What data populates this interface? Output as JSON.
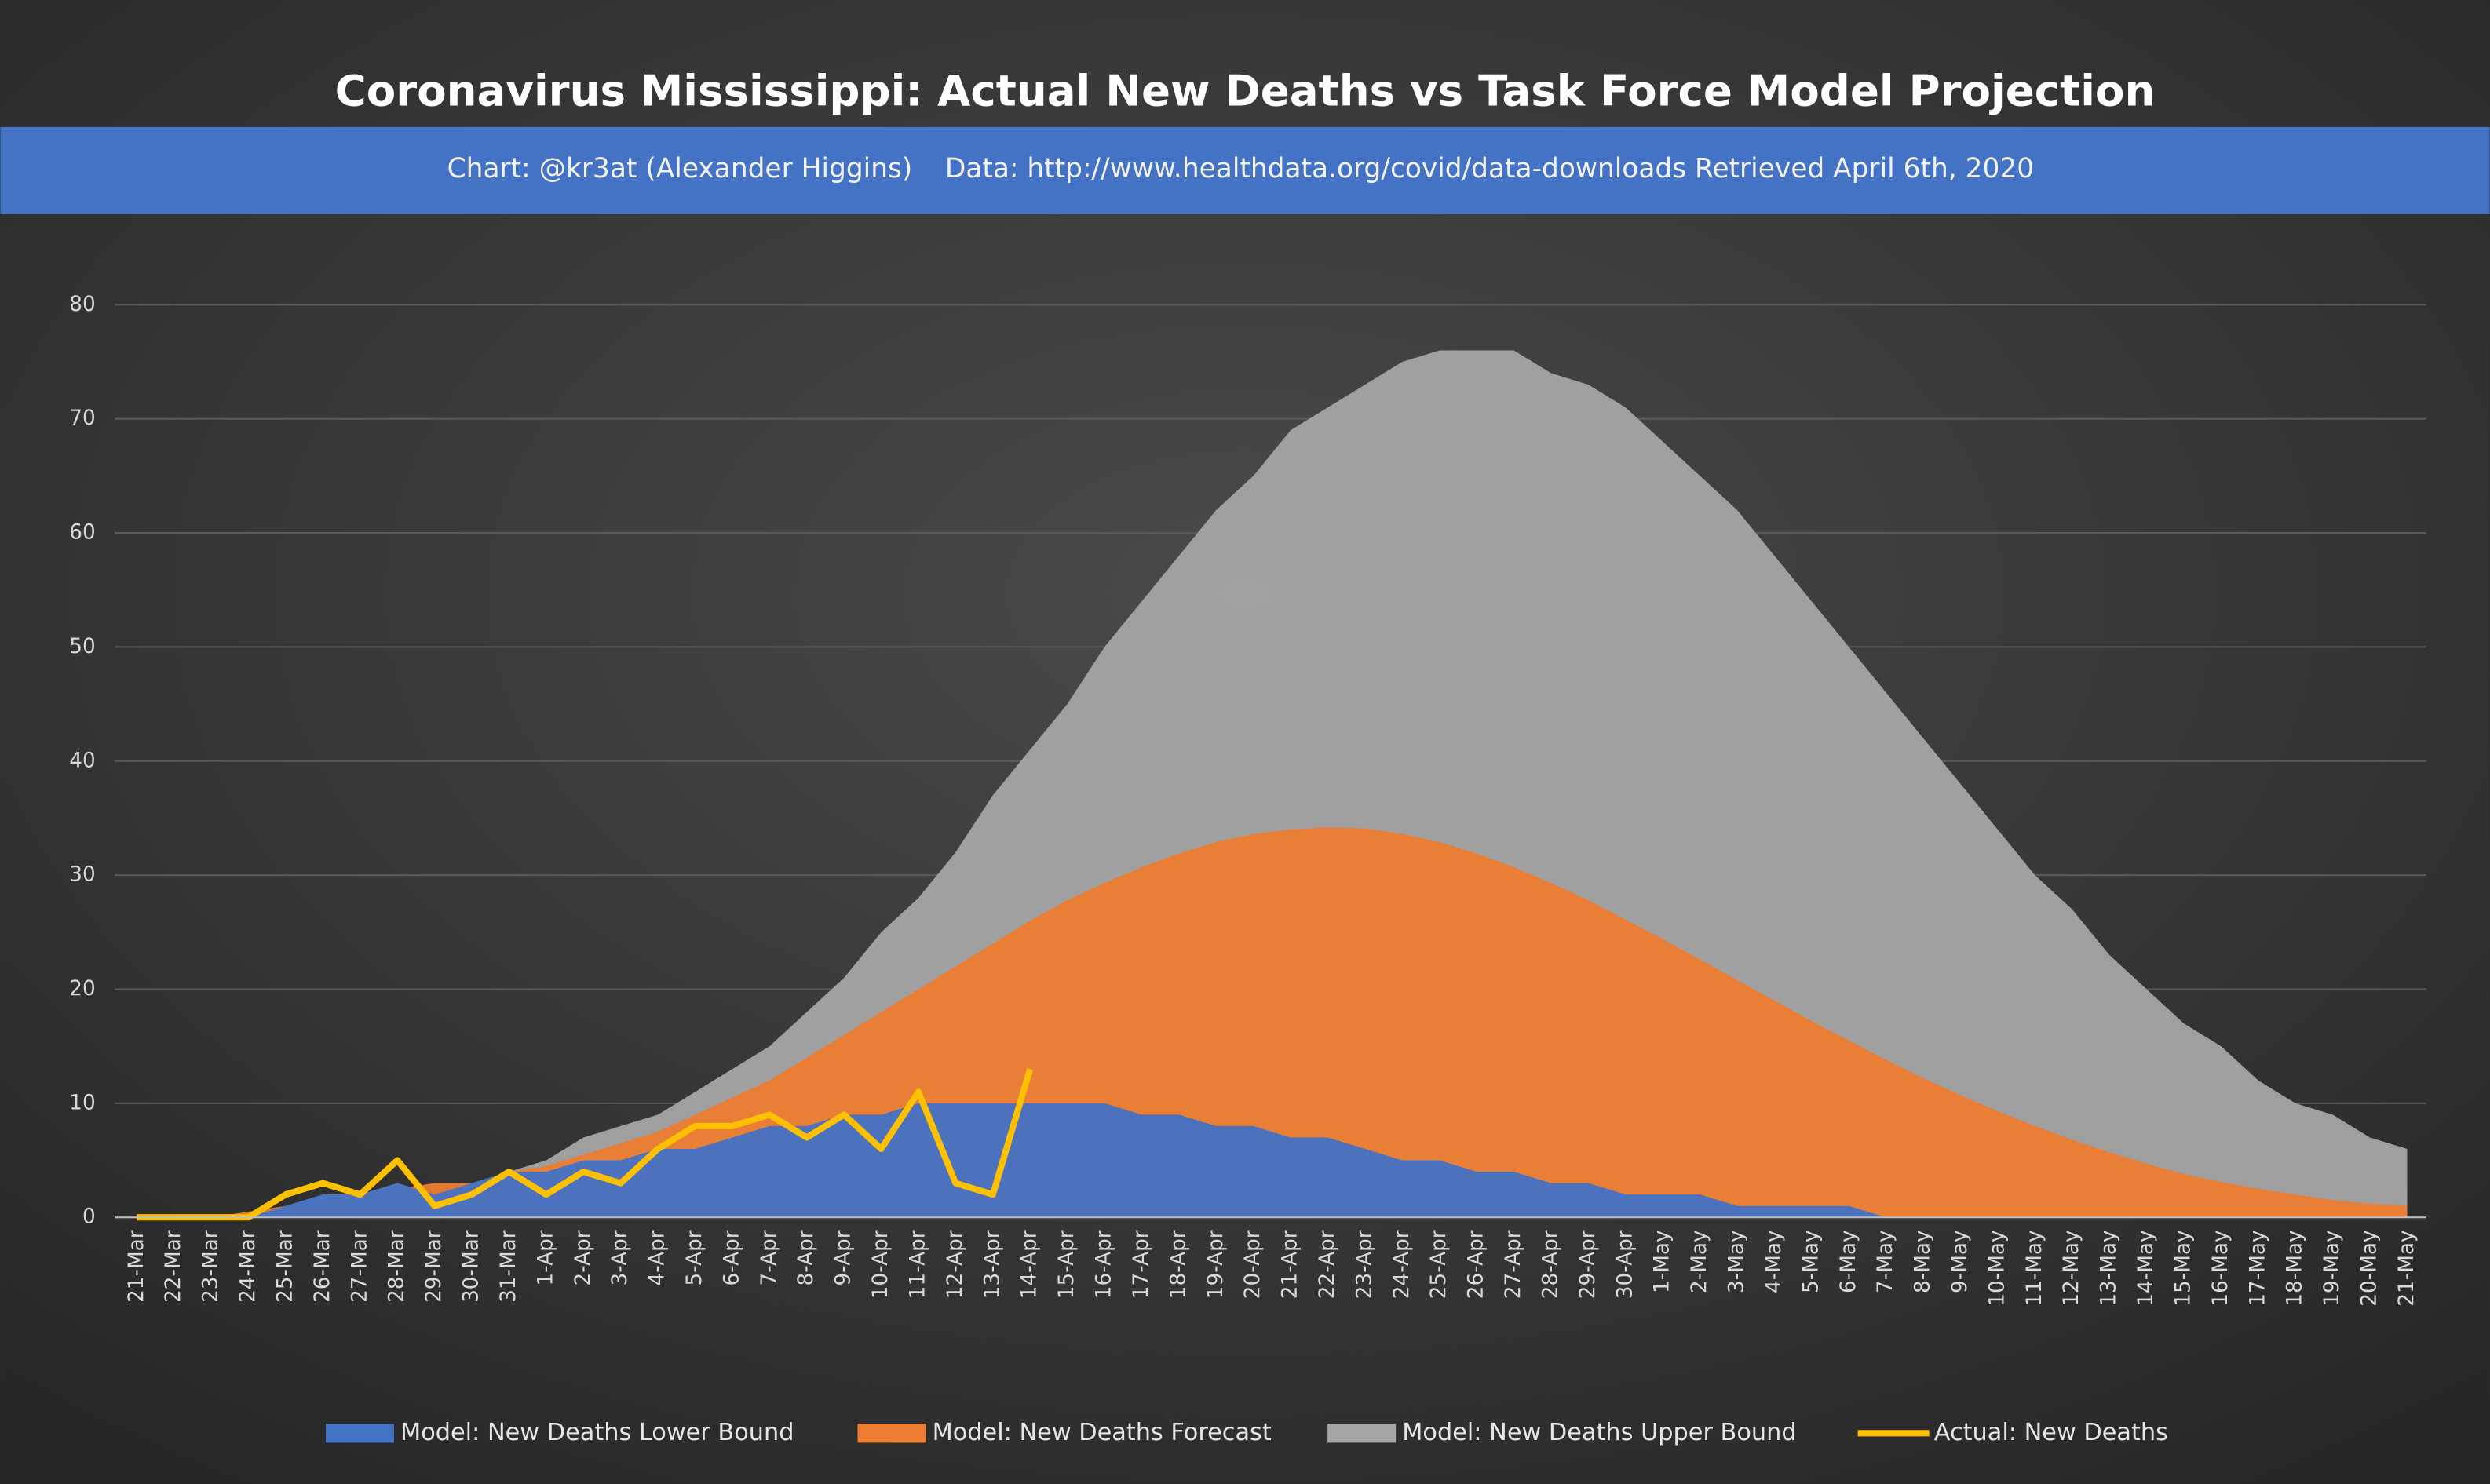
{
  "chart_data": {
    "type": "area",
    "title": "Coronavirus Mississippi: Actual New Deaths vs Task Force Model Projection",
    "subtitle": [
      "Chart: @kr3at (Alexander Higgins)",
      "Data: http://www.healthdata.org/covid/data-downloads Retrieved April 6th, 2020"
    ],
    "categories": [
      "21-Mar",
      "22-Mar",
      "23-Mar",
      "24-Mar",
      "25-Mar",
      "26-Mar",
      "27-Mar",
      "28-Mar",
      "29-Mar",
      "30-Mar",
      "31-Mar",
      "1-Apr",
      "2-Apr",
      "3-Apr",
      "4-Apr",
      "5-Apr",
      "6-Apr",
      "7-Apr",
      "8-Apr",
      "9-Apr",
      "10-Apr",
      "11-Apr",
      "12-Apr",
      "13-Apr",
      "14-Apr",
      "15-Apr",
      "16-Apr",
      "17-Apr",
      "18-Apr",
      "19-Apr",
      "20-Apr",
      "21-Apr",
      "22-Apr",
      "23-Apr",
      "24-Apr",
      "25-Apr",
      "26-Apr",
      "27-Apr",
      "28-Apr",
      "29-Apr",
      "30-Apr",
      "1-May",
      "2-May",
      "3-May",
      "4-May",
      "5-May",
      "6-May",
      "7-May",
      "8-May",
      "9-May",
      "10-May",
      "11-May",
      "12-May",
      "13-May",
      "14-May",
      "15-May",
      "16-May",
      "17-May",
      "18-May",
      "19-May",
      "20-May",
      "21-May"
    ],
    "series": [
      {
        "name": "Model: New Deaths Lower Bound",
        "color": "#4472c4",
        "kind": "area",
        "values": [
          0,
          0,
          0,
          0,
          1,
          2,
          2,
          3,
          2,
          3,
          4,
          4,
          5,
          5,
          6,
          6,
          7,
          8,
          8,
          9,
          9,
          10,
          10,
          10,
          10,
          10,
          10,
          9,
          9,
          8,
          8,
          7,
          7,
          6,
          5,
          5,
          4,
          4,
          3,
          3,
          2,
          2,
          2,
          1,
          1,
          1,
          1,
          0,
          0,
          0,
          0,
          0,
          0,
          0,
          0,
          0,
          0,
          0,
          0,
          0,
          0,
          0
        ]
      },
      {
        "name": "Model: New Deaths Forecast",
        "color": "#ed7d31",
        "kind": "area",
        "values": [
          0,
          0,
          0,
          0.5,
          1,
          1.5,
          2,
          2.5,
          3,
          3,
          4,
          4.5,
          5.5,
          6.5,
          7.5,
          9,
          10.5,
          12,
          14,
          16,
          18,
          20,
          22,
          24,
          26,
          27.8,
          29.3,
          30.7,
          31.9,
          32.9,
          33.6,
          34,
          34.2,
          34.1,
          33.6,
          32.9,
          31.9,
          30.7,
          29.3,
          27.8,
          26.1,
          24.4,
          22.6,
          20.8,
          19,
          17.2,
          15.5,
          13.8,
          12.2,
          10.7,
          9.3,
          8,
          6.8,
          5.7,
          4.7,
          3.8,
          3.1,
          2.5,
          2,
          1.5,
          1.2,
          1
        ]
      },
      {
        "name": "Model: New Deaths Upper Bound",
        "color": "#a5a5a5",
        "kind": "area",
        "values": [
          0,
          0,
          0,
          0,
          1,
          2,
          2,
          3,
          2,
          3,
          4,
          5,
          7,
          8,
          9,
          11,
          13,
          15,
          18,
          21,
          25,
          28,
          32,
          37,
          41,
          45,
          50,
          54,
          58,
          62,
          65,
          69,
          71,
          73,
          75,
          76,
          76,
          76,
          74,
          73,
          71,
          68,
          65,
          62,
          58,
          54,
          50,
          46,
          42,
          38,
          34,
          30,
          27,
          23,
          20,
          17,
          15,
          12,
          10,
          9,
          7,
          6
        ]
      },
      {
        "name": "Actual: New Deaths",
        "color": "#ffc000",
        "kind": "line",
        "values": [
          0,
          0,
          0,
          0,
          2,
          3,
          2,
          5,
          1,
          2,
          4,
          2,
          4,
          3,
          6,
          8,
          8,
          9,
          7,
          9,
          6,
          11,
          3,
          2,
          13,
          null,
          null,
          null,
          null,
          null,
          null,
          null,
          null,
          null,
          null,
          null,
          null,
          null,
          null,
          null,
          null,
          null,
          null,
          null,
          null,
          null,
          null,
          null,
          null,
          null,
          null,
          null,
          null,
          null,
          null,
          null,
          null,
          null,
          null,
          null,
          null,
          null
        ]
      }
    ],
    "ylim": [
      0,
      80
    ],
    "yticks": [
      0,
      10,
      20,
      30,
      40,
      50,
      60,
      70,
      80
    ],
    "grid": true,
    "legend": "bottom"
  }
}
